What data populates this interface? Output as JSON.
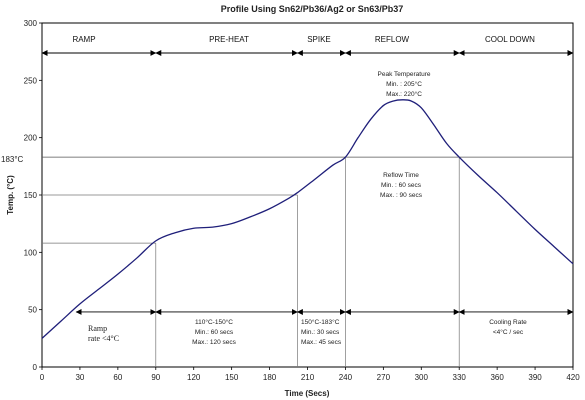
{
  "chart_data": {
    "type": "line",
    "title": "Profile Using Sn62/Pb36/Ag2 or Sn63/Pb37",
    "xlabel": "Time (Secs)",
    "ylabel": "Temp. (°C)",
    "xlim": [
      0,
      420
    ],
    "ylim": [
      0,
      300
    ],
    "xticks": [
      0,
      30,
      60,
      90,
      120,
      150,
      180,
      210,
      240,
      270,
      300,
      330,
      360,
      390,
      420
    ],
    "yticks": [
      0,
      50,
      100,
      150,
      200,
      250,
      300
    ],
    "grid": false,
    "series": [
      {
        "color": "#1f1f7a",
        "x": [
          0,
          15,
          30,
          45,
          60,
          75,
          90,
          105,
          120,
          135,
          150,
          165,
          180,
          195,
          202,
          215,
          230,
          240,
          250,
          260,
          270,
          278,
          285,
          292,
          300,
          310,
          320,
          330,
          345,
          360,
          375,
          390,
          405,
          420
        ],
        "y": [
          25,
          40,
          55,
          68,
          81,
          95,
          110,
          117,
          121,
          122,
          125,
          131,
          138,
          147,
          152,
          163,
          176,
          183,
          200,
          216,
          228,
          232,
          233,
          232,
          226,
          211,
          195,
          183,
          167,
          152,
          136,
          120,
          105,
          90
        ]
      }
    ],
    "reference_lines": {
      "y183": {
        "label": "183°C",
        "y": 183
      },
      "h150": {
        "y": 150
      },
      "h108": {
        "y": 108
      },
      "verticals": [
        90,
        202,
        240,
        330
      ]
    },
    "phases": [
      {
        "label": "RAMP",
        "x0": 0,
        "x1": 90
      },
      {
        "label": "PRE-HEAT",
        "x0": 90,
        "x1": 202
      },
      {
        "label": "SPIKE",
        "x0": 202,
        "x1": 240
      },
      {
        "label": "REFLOW",
        "x0": 240,
        "x1": 330
      },
      {
        "label": "COOL DOWN",
        "x0": 330,
        "x1": 420
      }
    ],
    "lower_arrows": [
      {
        "x0": 27,
        "x1": 90
      },
      {
        "x0": 90,
        "x1": 202
      },
      {
        "x0": 202,
        "x1": 240
      },
      {
        "x0": 240,
        "x1": 330
      },
      {
        "x0": 330,
        "x1": 420
      }
    ],
    "annotations": {
      "peak": {
        "title": "Peak Temperature",
        "min": "Min. : 205°C",
        "max": "Max.: 220°C"
      },
      "reflow_time": {
        "title": "Reflow Time",
        "min": "Min. : 60 secs",
        "max": "Max. : 90 secs"
      },
      "ramp": {
        "line1": "Ramp",
        "line2": "rate <4°C"
      },
      "preheat": {
        "line1": "110°C-150°C",
        "line2": "Min.: 60 secs",
        "line3": "Max.: 120 secs"
      },
      "spike": {
        "line1": "150°C-183°C",
        "line2": "Min.: 30 secs",
        "line3": "Max.: 45 secs"
      },
      "cooling": {
        "line1": "Cooling Rate",
        "line2": "<4°C / sec"
      }
    }
  }
}
